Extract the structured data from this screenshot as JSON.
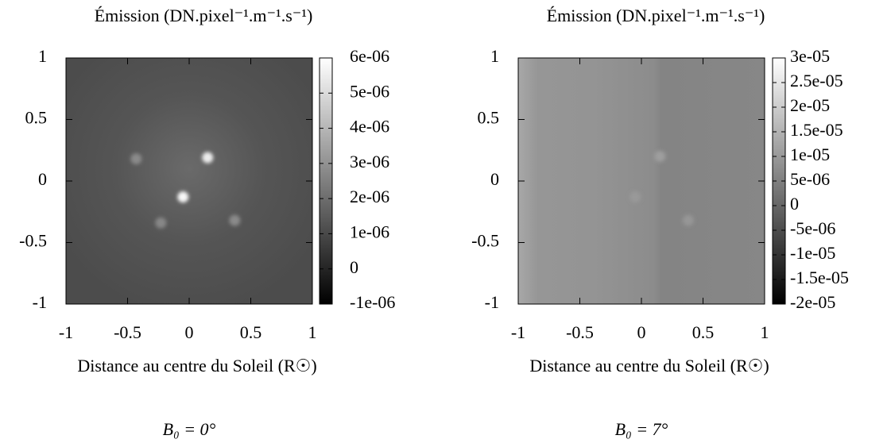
{
  "chart_data": [
    {
      "type": "heatmap",
      "title": "Émission (DN.pixel⁻¹.m⁻¹.s⁻¹)",
      "xlabel": "Distance au centre du Soleil (R☉)",
      "caption": "B₀ = 0°",
      "colormap": "gray",
      "xlim": [
        -1,
        1
      ],
      "ylim": [
        -1,
        1
      ],
      "xticks": [
        -1,
        -0.5,
        0,
        0.5,
        1
      ],
      "yticks": [
        -1,
        -0.5,
        0,
        0.5,
        1
      ],
      "clim": [
        -1e-06,
        6e-06
      ],
      "cticks": [
        {
          "value": -1e-06,
          "label": "-1e-06"
        },
        0,
        {
          "value": 1e-06,
          "label": "1e-06"
        },
        {
          "value": 2e-06,
          "label": "2e-06"
        },
        {
          "value": 3e-06,
          "label": "3e-06"
        },
        {
          "value": 4e-06,
          "label": "4e-06"
        },
        {
          "value": 5e-06,
          "label": "5e-06"
        },
        {
          "value": 6e-06,
          "label": "6e-06"
        }
      ],
      "sources": {
        "x": [
          0.15,
          -0.05,
          -0.43,
          -0.23,
          0.37
        ],
        "y": [
          0.19,
          -0.13,
          0.18,
          -0.34,
          -0.32
        ],
        "values": [
          5.5e-06,
          5.8e-06,
          2.8e-06,
          2.7e-06,
          2.8e-06
        ]
      }
    },
    {
      "type": "heatmap",
      "title": "Émission (DN.pixel⁻¹.m⁻¹.s⁻¹)",
      "xlabel": "Distance au centre du Soleil (R☉)",
      "caption": "B₀ = 7°",
      "colormap": "gray",
      "xlim": [
        -1,
        1
      ],
      "ylim": [
        -1,
        1
      ],
      "xticks": [
        -1,
        -0.5,
        0,
        0.5,
        1
      ],
      "yticks": [
        -1,
        -0.5,
        0,
        0.5,
        1
      ],
      "clim": [
        -2e-05,
        3e-05
      ],
      "cticks": [
        {
          "value": -2e-05,
          "label": "-2e-05"
        },
        {
          "value": -1.5e-05,
          "label": "-1.5e-05"
        },
        {
          "value": -1e-05,
          "label": "-1e-05"
        },
        {
          "value": -5e-06,
          "label": "-5e-06"
        },
        0,
        {
          "value": 5e-06,
          "label": "5e-06"
        },
        {
          "value": 1e-05,
          "label": "1e-05"
        },
        {
          "value": 1.5e-05,
          "label": "1.5e-05"
        },
        {
          "value": 2e-05,
          "label": "2e-05"
        },
        {
          "value": 2.5e-05,
          "label": "2.5e-05"
        },
        {
          "value": 3e-05,
          "label": "3e-05"
        }
      ],
      "sources": {
        "x": [
          0.15,
          -0.05,
          0.38
        ],
        "y": [
          0.2,
          -0.13,
          -0.32
        ],
        "values": [
          1.1e-05,
          1e-05,
          9.5e-06
        ]
      }
    }
  ]
}
